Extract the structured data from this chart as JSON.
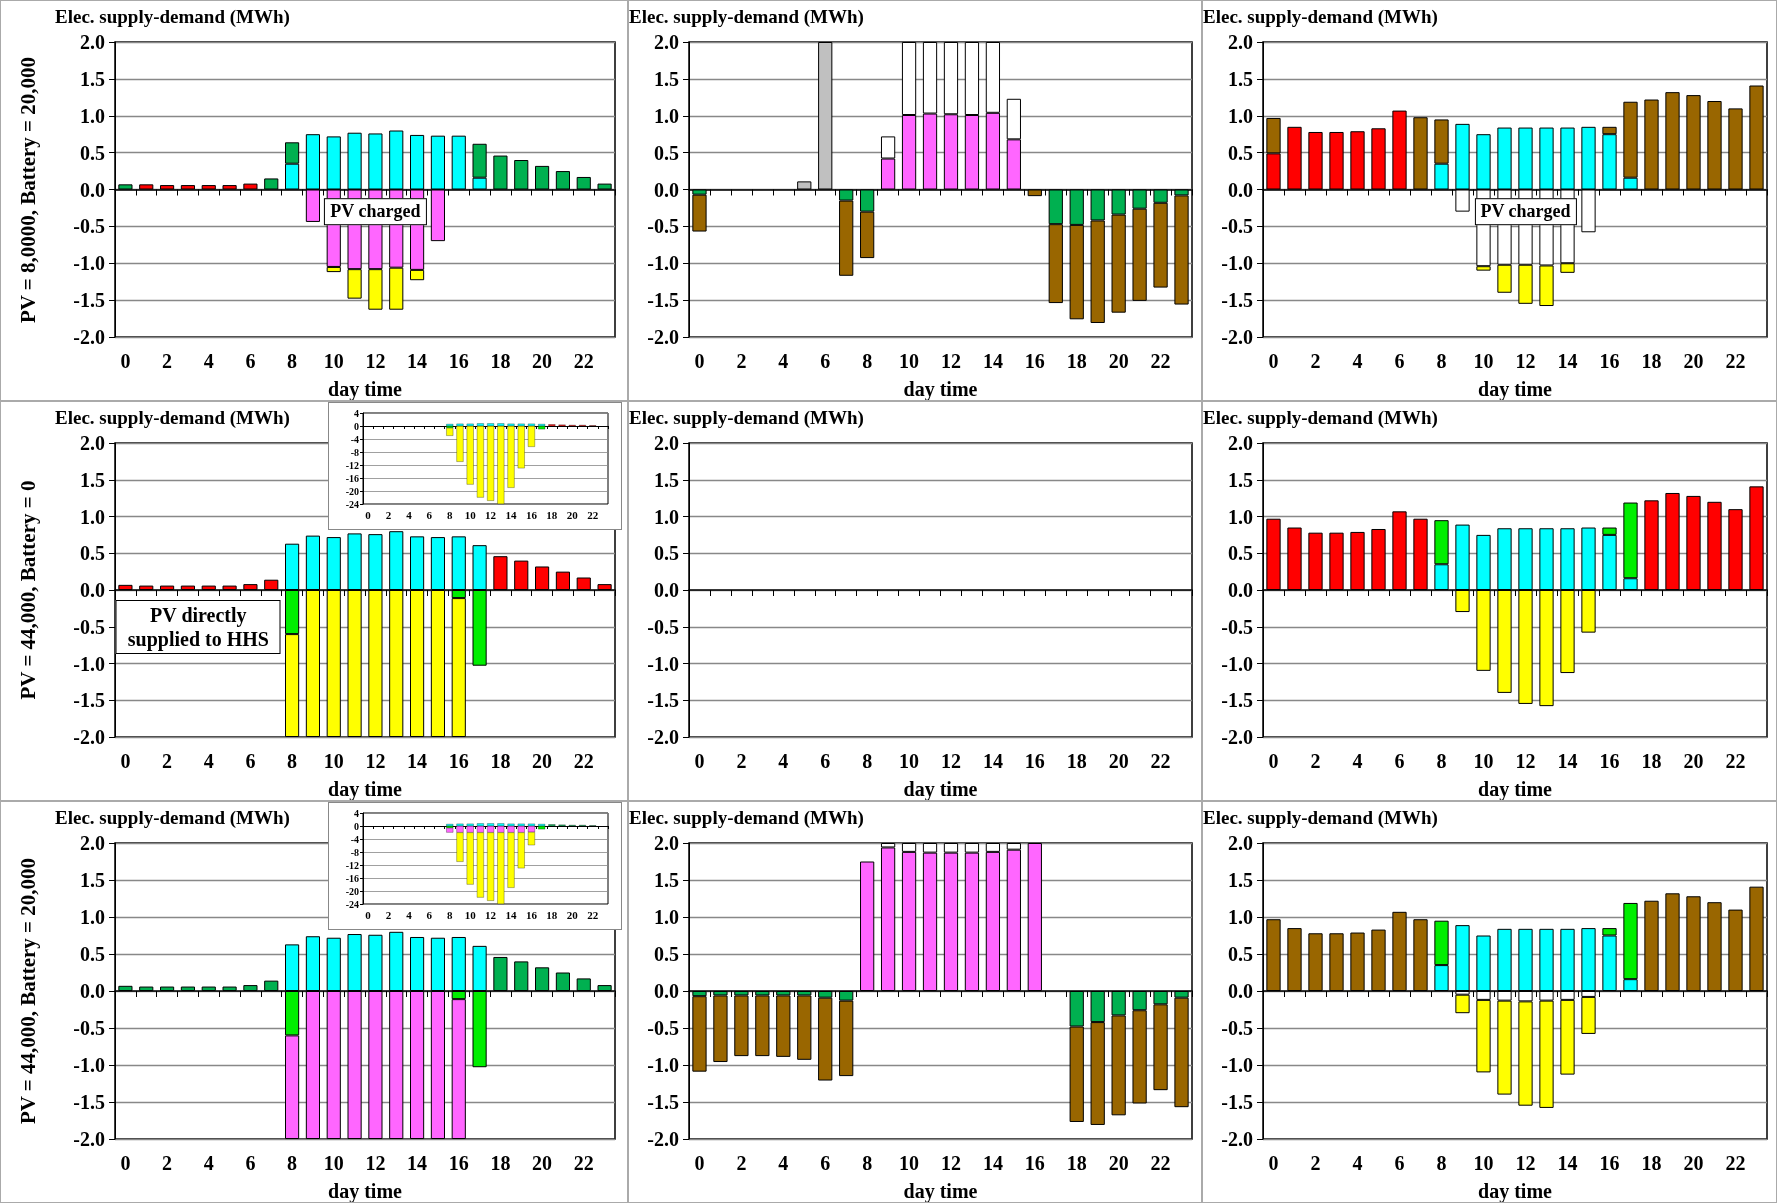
{
  "chart_data": [
    {
      "type": "bar",
      "stacked": true,
      "grid": "y",
      "xlabel": "day time",
      "ylabel": "Elec. supply-demand (MWh)",
      "annotations": [
        "PV = 8,0000, Battery = 20,000",
        "PV charged"
      ],
      "categories": [
        "0",
        null,
        "2",
        null,
        "4",
        null,
        "6",
        null,
        "8",
        null,
        "10",
        null,
        "12",
        null,
        "14",
        null,
        "16",
        null,
        "18",
        null,
        "20",
        null,
        "22",
        null
      ],
      "ylim": [
        -2,
        2
      ],
      "yticks": [
        {
          "value": 2,
          "label": "2.0"
        },
        {
          "value": 1.5,
          "label": "1.5"
        },
        {
          "value": 1,
          "label": "1.0"
        },
        {
          "value": 0.5,
          "label": "0.5"
        },
        {
          "value": 0,
          "label": "0.0"
        },
        {
          "value": -0.5,
          "label": "-0.5"
        },
        {
          "value": -1,
          "label": "-1.0"
        },
        {
          "value": -1.5,
          "label": "-1.5"
        },
        {
          "value": -2,
          "label": "-2.0"
        }
      ],
      "series": [
        {
          "color": "#ff0000",
          "values": [
            null,
            0.07,
            0.06,
            0.06,
            0.06,
            0.06,
            0.08,
            null,
            null,
            null,
            null,
            null,
            null,
            null,
            null,
            null,
            null,
            null,
            null,
            null,
            null,
            null,
            null,
            null
          ]
        },
        {
          "color": "#00ffff",
          "values": [
            null,
            null,
            null,
            null,
            null,
            null,
            null,
            null,
            0.35,
            0.75,
            0.72,
            0.77,
            0.76,
            0.8,
            0.74,
            0.73,
            0.73,
            0.16,
            null,
            null,
            null,
            null,
            null,
            null
          ]
        },
        {
          "color": "#00b050",
          "values": [
            0.07,
            null,
            null,
            null,
            null,
            null,
            null,
            0.15,
            0.29,
            null,
            null,
            null,
            null,
            null,
            null,
            null,
            null,
            0.46,
            0.46,
            0.4,
            0.32,
            0.25,
            0.17,
            0.08
          ]
        },
        {
          "color": "#ff66ff",
          "values": [
            null,
            null,
            null,
            null,
            null,
            null,
            null,
            null,
            null,
            -0.44,
            -1.05,
            -1.08,
            -1.08,
            -1.06,
            -1.09,
            -0.7,
            null,
            null,
            null,
            null,
            null,
            null,
            null,
            null
          ]
        },
        {
          "color": "#ffff00",
          "values": [
            null,
            null,
            null,
            null,
            null,
            null,
            null,
            null,
            null,
            null,
            -0.07,
            -0.4,
            -0.55,
            -0.57,
            -0.14,
            null,
            null,
            null,
            null,
            null,
            null,
            null,
            null,
            null
          ]
        }
      ]
    },
    {
      "type": "bar",
      "stacked": true,
      "grid": "y",
      "xlabel": "day time",
      "ylabel": "Elec. supply-demand (MWh)",
      "categories": [
        "0",
        null,
        "2",
        null,
        "4",
        null,
        "6",
        null,
        "8",
        null,
        "10",
        null,
        "12",
        null,
        "14",
        null,
        "16",
        null,
        "18",
        null,
        "20",
        null,
        "22",
        null
      ],
      "ylim": [
        -2,
        2
      ],
      "yticks": [
        {
          "value": 2,
          "label": "2.0"
        },
        {
          "value": 1.5,
          "label": "1.5"
        },
        {
          "value": 1,
          "label": "1.0"
        },
        {
          "value": 0.5,
          "label": "0.5"
        },
        {
          "value": 0,
          "label": "0.0"
        },
        {
          "value": -0.5,
          "label": "-0.5"
        },
        {
          "value": -1,
          "label": "-1.0"
        },
        {
          "value": -1.5,
          "label": "-1.5"
        },
        {
          "value": -2,
          "label": "-2.0"
        }
      ],
      "series": [
        {
          "color": "#c0c0c0",
          "values": [
            null,
            null,
            null,
            null,
            null,
            0.11,
            2,
            null,
            null,
            null,
            null,
            null,
            null,
            null,
            null,
            null,
            null,
            null,
            null,
            null,
            null,
            null,
            null,
            null
          ]
        },
        {
          "color": "#ff66ff",
          "values": [
            null,
            null,
            null,
            null,
            null,
            null,
            null,
            null,
            null,
            0.42,
            1.01,
            1.03,
            1.02,
            1.01,
            1.04,
            0.68,
            null,
            null,
            null,
            null,
            null,
            null,
            null,
            null
          ]
        },
        {
          "color": "#ffffff",
          "values": [
            null,
            null,
            null,
            null,
            null,
            null,
            null,
            null,
            null,
            0.3,
            0.99,
            0.97,
            0.98,
            0.99,
            0.96,
            0.55,
            null,
            null,
            null,
            null,
            null,
            null,
            null,
            null
          ]
        },
        {
          "color": "#00b050",
          "values": [
            -0.07,
            null,
            null,
            null,
            null,
            null,
            null,
            -0.15,
            -0.3,
            null,
            null,
            null,
            null,
            null,
            null,
            null,
            null,
            -0.47,
            -0.48,
            -0.42,
            -0.34,
            -0.26,
            -0.18,
            -0.08
          ]
        },
        {
          "color": "#996600",
          "values": [
            -0.5,
            null,
            null,
            null,
            null,
            null,
            null,
            -1.02,
            -0.63,
            null,
            null,
            null,
            null,
            null,
            null,
            null,
            -0.09,
            -1.07,
            -1.28,
            -1.39,
            -1.33,
            -1.25,
            -1.15,
            -1.48
          ]
        }
      ]
    },
    {
      "type": "bar",
      "stacked": true,
      "grid": "y",
      "xlabel": "day time",
      "ylabel": "Elec. supply-demand (MWh)",
      "annotations": [
        "PV charged"
      ],
      "categories": [
        "0",
        null,
        "2",
        null,
        "4",
        null,
        "6",
        null,
        "8",
        null,
        "10",
        null,
        "12",
        null,
        "14",
        null,
        "16",
        null,
        "18",
        null,
        "20",
        null,
        "22",
        null
      ],
      "ylim": [
        -2,
        2
      ],
      "yticks": [
        {
          "value": 2,
          "label": "2.0"
        },
        {
          "value": 1.5,
          "label": "1.5"
        },
        {
          "value": 1,
          "label": "1.0"
        },
        {
          "value": 0.5,
          "label": "0.5"
        },
        {
          "value": 0,
          "label": "0.0"
        },
        {
          "value": -0.5,
          "label": "-0.5"
        },
        {
          "value": -1,
          "label": "-1.0"
        },
        {
          "value": -1.5,
          "label": "-1.5"
        },
        {
          "value": -2,
          "label": "-2.0"
        }
      ],
      "series": [
        {
          "color": "#ff0000",
          "values": [
            0.49,
            0.85,
            0.78,
            0.78,
            0.79,
            0.83,
            1.07,
            null,
            null,
            null,
            null,
            null,
            null,
            null,
            null,
            null,
            null,
            null,
            null,
            null,
            null,
            null,
            null,
            null
          ]
        },
        {
          "color": "#00ffff",
          "values": [
            null,
            null,
            null,
            null,
            null,
            null,
            null,
            null,
            0.35,
            0.89,
            0.75,
            0.84,
            0.84,
            0.84,
            0.84,
            0.85,
            0.75,
            0.16,
            null,
            null,
            null,
            null,
            null,
            null
          ]
        },
        {
          "color": "#996600",
          "values": [
            0.48,
            null,
            null,
            null,
            null,
            null,
            null,
            0.98,
            0.6,
            null,
            null,
            null,
            null,
            null,
            null,
            null,
            0.1,
            1.03,
            1.22,
            1.32,
            1.28,
            1.2,
            1.1,
            1.41
          ]
        },
        {
          "color": "#ffffff",
          "values": [
            null,
            null,
            null,
            null,
            null,
            null,
            null,
            null,
            null,
            -0.3,
            -1.04,
            -1.02,
            -1.02,
            -1.03,
            -1,
            -0.58,
            null,
            null,
            null,
            null,
            null,
            null,
            null,
            null
          ]
        },
        {
          "color": "#ffff00",
          "values": [
            null,
            null,
            null,
            null,
            null,
            null,
            null,
            null,
            null,
            null,
            -0.06,
            -0.38,
            -0.53,
            -0.55,
            -0.13,
            null,
            null,
            null,
            null,
            null,
            null,
            null,
            null,
            null
          ]
        }
      ]
    },
    {
      "type": "bar",
      "stacked": true,
      "grid": "y",
      "xlabel": "day time",
      "ylabel": "Elec. supply-demand (MWh)",
      "annotations": [
        "PV = 44,000, Battery = 0",
        "PV directly supplied to HHS"
      ],
      "categories": [
        "0",
        null,
        "2",
        null,
        "4",
        null,
        "6",
        null,
        "8",
        null,
        "10",
        null,
        "12",
        null,
        "14",
        null,
        "16",
        null,
        "18",
        null,
        "20",
        null,
        "22",
        null
      ],
      "ylim": [
        -2,
        2
      ],
      "yticks": [
        {
          "value": 2,
          "label": "2.0"
        },
        {
          "value": 1.5,
          "label": "1.5"
        },
        {
          "value": 1,
          "label": "1.0"
        },
        {
          "value": 0.5,
          "label": "0.5"
        },
        {
          "value": 0,
          "label": "0.0"
        },
        {
          "value": -0.5,
          "label": "-0.5"
        },
        {
          "value": -1,
          "label": "-1.0"
        },
        {
          "value": -1.5,
          "label": "-1.5"
        },
        {
          "value": -2,
          "label": "-2.0"
        }
      ],
      "series": [
        {
          "color": "#ff0000",
          "values": [
            0.07,
            0.06,
            0.06,
            0.06,
            0.06,
            0.06,
            0.08,
            0.14,
            null,
            null,
            null,
            null,
            null,
            null,
            null,
            null,
            null,
            null,
            0.46,
            0.4,
            0.32,
            0.25,
            0.17,
            0.08
          ]
        },
        {
          "color": "#00ffff",
          "values": [
            null,
            null,
            null,
            null,
            null,
            null,
            null,
            null,
            0.63,
            0.74,
            0.72,
            0.77,
            0.76,
            0.8,
            0.73,
            0.72,
            0.73,
            0.61,
            null,
            null,
            null,
            null,
            null,
            null
          ]
        },
        {
          "color": "#00ee00",
          "values": [
            null,
            null,
            null,
            null,
            null,
            null,
            null,
            null,
            -0.6,
            null,
            null,
            null,
            null,
            null,
            null,
            null,
            -0.11,
            -1.03,
            null,
            null,
            null,
            null,
            null,
            null
          ]
        },
        {
          "color": "#ffff00",
          "values": [
            null,
            null,
            null,
            null,
            null,
            null,
            null,
            null,
            -1.4,
            -2,
            -2,
            -2,
            -2,
            -2,
            -2,
            -2,
            -1.89,
            null,
            null,
            null,
            null,
            null,
            null,
            null
          ]
        }
      ]
    },
    {
      "type": "bar",
      "stacked": true,
      "grid": "y",
      "categories": [
        "0",
        null,
        "2",
        null,
        "4",
        null,
        "6",
        null,
        "8",
        null,
        "10",
        null,
        "12",
        null,
        "14",
        null,
        "16",
        null,
        "18",
        null,
        "20",
        null,
        "22",
        null
      ],
      "ylim": [
        -24,
        4
      ],
      "yticks": [
        4,
        0,
        -4,
        -8,
        -12,
        -16,
        -20,
        -24
      ],
      "series": [
        {
          "color": "#ff0000",
          "values": [
            null,
            null,
            null,
            null,
            null,
            null,
            null,
            null,
            null,
            null,
            null,
            null,
            null,
            null,
            null,
            null,
            null,
            null,
            0.5,
            0.4,
            0.3,
            0.3,
            0.2,
            null
          ]
        },
        {
          "color": "#00ffff",
          "values": [
            null,
            null,
            null,
            null,
            null,
            null,
            null,
            null,
            0.6,
            0.7,
            0.7,
            0.8,
            0.8,
            0.8,
            0.7,
            0.7,
            0.7,
            0.6,
            null,
            null,
            null,
            null,
            null,
            null
          ]
        },
        {
          "color": "#00ee00",
          "values": [
            null,
            null,
            null,
            null,
            null,
            null,
            null,
            null,
            -0.6,
            null,
            null,
            null,
            null,
            null,
            null,
            null,
            null,
            -1,
            null,
            null,
            null,
            null,
            null,
            null
          ]
        },
        {
          "color": "#ffff00",
          "values": [
            null,
            null,
            null,
            null,
            null,
            null,
            null,
            null,
            -2.4,
            -11,
            -18,
            -22,
            -23,
            -24,
            -19,
            -13,
            -6.4,
            null,
            null,
            null,
            null,
            null,
            null,
            null
          ]
        }
      ]
    },
    {
      "type": "bar",
      "stacked": true,
      "grid": "y",
      "xlabel": "day time",
      "ylabel": "Elec. supply-demand (MWh)",
      "categories": [
        "0",
        null,
        "2",
        null,
        "4",
        null,
        "6",
        null,
        "8",
        null,
        "10",
        null,
        "12",
        null,
        "14",
        null,
        "16",
        null,
        "18",
        null,
        "20",
        null,
        "22",
        null
      ],
      "ylim": [
        -2,
        2
      ],
      "yticks": [
        {
          "value": 2,
          "label": "2.0"
        },
        {
          "value": 1.5,
          "label": "1.5"
        },
        {
          "value": 1,
          "label": "1.0"
        },
        {
          "value": 0.5,
          "label": "0.5"
        },
        {
          "value": 0,
          "label": "0.0"
        },
        {
          "value": -0.5,
          "label": "-0.5"
        },
        {
          "value": -1,
          "label": "-1.0"
        },
        {
          "value": -1.5,
          "label": "-1.5"
        },
        {
          "value": -2,
          "label": "-2.0"
        }
      ],
      "values": [
        null,
        null,
        null,
        null,
        null,
        null,
        null,
        null,
        null,
        null,
        null,
        null,
        null,
        null,
        null,
        null,
        null,
        null,
        null,
        null,
        null,
        null,
        null,
        null
      ]
    },
    {
      "type": "bar",
      "stacked": true,
      "grid": "y",
      "xlabel": "day time",
      "ylabel": "Elec. supply-demand (MWh)",
      "categories": [
        "0",
        null,
        "2",
        null,
        "4",
        null,
        "6",
        null,
        "8",
        null,
        "10",
        null,
        "12",
        null,
        "14",
        null,
        "16",
        null,
        "18",
        null,
        "20",
        null,
        "22",
        null
      ],
      "ylim": [
        -2,
        2
      ],
      "yticks": [
        {
          "value": 2,
          "label": "2.0"
        },
        {
          "value": 1.5,
          "label": "1.5"
        },
        {
          "value": 1,
          "label": "1.0"
        },
        {
          "value": 0.5,
          "label": "0.5"
        },
        {
          "value": 0,
          "label": "0.0"
        },
        {
          "value": -0.5,
          "label": "-0.5"
        },
        {
          "value": -1,
          "label": "-1.0"
        },
        {
          "value": -1.5,
          "label": "-1.5"
        },
        {
          "value": -2,
          "label": "-2.0"
        }
      ],
      "series": [
        {
          "color": "#ff0000",
          "values": [
            0.97,
            0.85,
            0.78,
            0.78,
            0.79,
            0.83,
            1.07,
            0.97,
            null,
            null,
            null,
            null,
            null,
            null,
            null,
            null,
            null,
            null,
            1.22,
            1.32,
            1.28,
            1.2,
            1.1,
            1.41
          ]
        },
        {
          "color": "#00ffff",
          "values": [
            null,
            null,
            null,
            null,
            null,
            null,
            null,
            null,
            0.35,
            0.89,
            0.75,
            0.84,
            0.84,
            0.84,
            0.84,
            0.85,
            0.75,
            0.16,
            null,
            null,
            null,
            null,
            null,
            null
          ]
        },
        {
          "color": "#00ee00",
          "values": [
            null,
            null,
            null,
            null,
            null,
            null,
            null,
            null,
            0.6,
            null,
            null,
            null,
            null,
            null,
            null,
            null,
            0.1,
            1.03,
            null,
            null,
            null,
            null,
            null,
            null
          ]
        },
        {
          "color": "#ffff00",
          "values": [
            null,
            null,
            null,
            null,
            null,
            null,
            null,
            null,
            null,
            -0.3,
            -1.1,
            -1.4,
            -1.55,
            -1.58,
            -1.13,
            -0.58,
            null,
            null,
            null,
            null,
            null,
            null,
            null,
            null
          ]
        }
      ]
    },
    {
      "type": "bar",
      "stacked": true,
      "grid": "y",
      "xlabel": "day time",
      "ylabel": "Elec. supply-demand (MWh)",
      "annotations": [
        "PV = 44,000, Battery = 20,000"
      ],
      "categories": [
        "0",
        null,
        "2",
        null,
        "4",
        null,
        "6",
        null,
        "8",
        null,
        "10",
        null,
        "12",
        null,
        "14",
        null,
        "16",
        null,
        "18",
        null,
        "20",
        null,
        "22",
        null
      ],
      "ylim": [
        -2,
        2
      ],
      "yticks": [
        {
          "value": 2,
          "label": "2.0"
        },
        {
          "value": 1.5,
          "label": "1.5"
        },
        {
          "value": 1,
          "label": "1.0"
        },
        {
          "value": 0.5,
          "label": "0.5"
        },
        {
          "value": 0,
          "label": "0.0"
        },
        {
          "value": -0.5,
          "label": "-0.5"
        },
        {
          "value": -1,
          "label": "-1.0"
        },
        {
          "value": -1.5,
          "label": "-1.5"
        },
        {
          "value": -2,
          "label": "-2.0"
        }
      ],
      "series": [
        {
          "color": "#00b050",
          "values": [
            0.07,
            0.06,
            0.06,
            0.06,
            0.06,
            0.06,
            0.08,
            0.14,
            null,
            null,
            null,
            null,
            null,
            null,
            null,
            null,
            null,
            null,
            0.46,
            0.4,
            0.32,
            0.25,
            0.17,
            0.08
          ]
        },
        {
          "color": "#00ffff",
          "values": [
            null,
            null,
            null,
            null,
            null,
            null,
            null,
            null,
            0.63,
            0.74,
            0.72,
            0.77,
            0.76,
            0.8,
            0.73,
            0.72,
            0.73,
            0.61,
            null,
            null,
            null,
            null,
            null,
            null
          ]
        },
        {
          "color": "#00ee00",
          "values": [
            null,
            null,
            null,
            null,
            null,
            null,
            null,
            null,
            -0.6,
            null,
            null,
            null,
            null,
            null,
            null,
            null,
            -0.11,
            -1.03,
            null,
            null,
            null,
            null,
            null,
            null
          ]
        },
        {
          "color": "#ff66ff",
          "values": [
            null,
            null,
            null,
            null,
            null,
            null,
            null,
            null,
            -1.4,
            -2,
            -2,
            -2,
            -2,
            -2,
            -2,
            -2,
            -1.89,
            null,
            null,
            null,
            null,
            null,
            null,
            null
          ]
        }
      ]
    },
    {
      "type": "bar",
      "stacked": true,
      "grid": "y",
      "categories": [
        "0",
        null,
        "2",
        null,
        "4",
        null,
        "6",
        null,
        "8",
        null,
        "10",
        null,
        "12",
        null,
        "14",
        null,
        "16",
        null,
        "18",
        null,
        "20",
        null,
        "22",
        null
      ],
      "ylim": [
        -24,
        4
      ],
      "yticks": [
        4,
        0,
        -4,
        -8,
        -12,
        -16,
        -20,
        -24
      ],
      "series": [
        {
          "color": "#00b050",
          "values": [
            null,
            null,
            null,
            null,
            null,
            null,
            null,
            null,
            null,
            null,
            null,
            null,
            null,
            null,
            null,
            null,
            null,
            null,
            0.5,
            0.4,
            0.3,
            0.3,
            0.2,
            null
          ]
        },
        {
          "color": "#00ffff",
          "values": [
            null,
            null,
            null,
            null,
            null,
            null,
            null,
            null,
            0.6,
            0.7,
            0.7,
            0.8,
            0.8,
            0.8,
            0.7,
            0.7,
            0.7,
            0.6,
            null,
            null,
            null,
            null,
            null,
            null
          ]
        },
        {
          "color": "#00ee00",
          "values": [
            null,
            null,
            null,
            null,
            null,
            null,
            null,
            null,
            -0.6,
            null,
            null,
            null,
            null,
            null,
            null,
            null,
            null,
            -1,
            null,
            null,
            null,
            null,
            null,
            null
          ]
        },
        {
          "color": "#ff66ff",
          "values": [
            null,
            null,
            null,
            null,
            null,
            null,
            null,
            null,
            -1.4,
            -2,
            -2,
            -2,
            -2,
            -2,
            -2,
            -2,
            -1.9,
            null,
            null,
            null,
            null,
            null,
            null,
            null
          ]
        },
        {
          "color": "#ffff00",
          "values": [
            null,
            null,
            null,
            null,
            null,
            null,
            null,
            null,
            null,
            -9,
            -16,
            -20,
            -21,
            -22,
            -17,
            -11,
            -4,
            null,
            null,
            null,
            null,
            null,
            null,
            null
          ]
        }
      ]
    },
    {
      "type": "bar",
      "stacked": true,
      "grid": "y",
      "xlabel": "day time",
      "ylabel": "Elec. supply-demand (MWh)",
      "categories": [
        "0",
        null,
        "2",
        null,
        "4",
        null,
        "6",
        null,
        "8",
        null,
        "10",
        null,
        "12",
        null,
        "14",
        null,
        "16",
        null,
        "18",
        null,
        "20",
        null,
        "22",
        null
      ],
      "ylim": [
        -2,
        2
      ],
      "yticks": [
        {
          "value": 2,
          "label": "2.0"
        },
        {
          "value": 1.5,
          "label": "1.5"
        },
        {
          "value": 1,
          "label": "1.0"
        },
        {
          "value": 0.5,
          "label": "0.5"
        },
        {
          "value": 0,
          "label": "0.0"
        },
        {
          "value": -0.5,
          "label": "-0.5"
        },
        {
          "value": -1,
          "label": "-1.0"
        },
        {
          "value": -1.5,
          "label": "-1.5"
        },
        {
          "value": -2,
          "label": "-2.0"
        }
      ],
      "series": [
        {
          "color": "#ff66ff",
          "values": [
            null,
            null,
            null,
            null,
            null,
            null,
            null,
            null,
            1.75,
            1.94,
            1.88,
            1.87,
            1.87,
            1.87,
            1.88,
            1.91,
            2,
            null,
            null,
            null,
            null,
            null,
            null,
            null
          ]
        },
        {
          "color": "#ffffff",
          "values": [
            null,
            null,
            null,
            null,
            null,
            null,
            null,
            null,
            null,
            0.06,
            0.12,
            0.13,
            0.13,
            0.13,
            0.12,
            0.09,
            null,
            null,
            null,
            null,
            null,
            null,
            null,
            null
          ]
        },
        {
          "color": "#00b050",
          "values": [
            -0.07,
            -0.06,
            -0.06,
            -0.06,
            -0.06,
            -0.06,
            -0.09,
            -0.13,
            null,
            null,
            null,
            null,
            null,
            null,
            null,
            null,
            null,
            null,
            -0.48,
            -0.42,
            -0.33,
            -0.26,
            -0.18,
            -0.09
          ]
        },
        {
          "color": "#996600",
          "values": [
            -1.02,
            -0.9,
            -0.82,
            -0.82,
            -0.83,
            -0.87,
            -1.12,
            -1.02,
            null,
            null,
            null,
            null,
            null,
            null,
            null,
            null,
            null,
            null,
            -1.29,
            -1.39,
            -1.35,
            -1.26,
            -1.16,
            -1.48
          ]
        }
      ]
    },
    {
      "type": "bar",
      "stacked": true,
      "grid": "y",
      "xlabel": "day time",
      "ylabel": "Elec. supply-demand (MWh)",
      "categories": [
        "0",
        null,
        "2",
        null,
        "4",
        null,
        "6",
        null,
        "8",
        null,
        "10",
        null,
        "12",
        null,
        "14",
        null,
        "16",
        null,
        "18",
        null,
        "20",
        null,
        "22",
        null
      ],
      "ylim": [
        -2,
        2
      ],
      "yticks": [
        {
          "value": 2,
          "label": "2.0"
        },
        {
          "value": 1.5,
          "label": "1.5"
        },
        {
          "value": 1,
          "label": "1.0"
        },
        {
          "value": 0.5,
          "label": "0.5"
        },
        {
          "value": 0,
          "label": "0.0"
        },
        {
          "value": -0.5,
          "label": "-0.5"
        },
        {
          "value": -1,
          "label": "-1.0"
        },
        {
          "value": -1.5,
          "label": "-1.5"
        },
        {
          "value": -2,
          "label": "-2.0"
        }
      ],
      "series": [
        {
          "color": "#996600",
          "values": [
            0.97,
            0.85,
            0.78,
            0.78,
            0.79,
            0.83,
            1.07,
            0.97,
            null,
            null,
            null,
            null,
            null,
            null,
            null,
            null,
            null,
            null,
            1.22,
            1.32,
            1.28,
            1.2,
            1.1,
            1.41
          ]
        },
        {
          "color": "#00ffff",
          "values": [
            null,
            null,
            null,
            null,
            null,
            null,
            null,
            null,
            0.35,
            0.89,
            0.75,
            0.84,
            0.84,
            0.84,
            0.84,
            0.85,
            0.75,
            0.16,
            null,
            null,
            null,
            null,
            null,
            null
          ]
        },
        {
          "color": "#00ee00",
          "values": [
            null,
            null,
            null,
            null,
            null,
            null,
            null,
            null,
            0.6,
            null,
            null,
            null,
            null,
            null,
            null,
            null,
            0.1,
            1.03,
            null,
            null,
            null,
            null,
            null,
            null
          ]
        },
        {
          "color": "#ffffff",
          "values": [
            null,
            null,
            null,
            null,
            null,
            null,
            null,
            null,
            null,
            -0.05,
            -0.12,
            -0.13,
            -0.14,
            -0.13,
            -0.12,
            -0.08,
            null,
            null,
            null,
            null,
            null,
            null,
            null,
            null
          ]
        },
        {
          "color": "#ffff00",
          "values": [
            null,
            null,
            null,
            null,
            null,
            null,
            null,
            null,
            null,
            -0.25,
            -0.98,
            -1.27,
            -1.41,
            -1.45,
            -1.01,
            -0.5,
            null,
            null,
            null,
            null,
            null,
            null,
            null,
            null
          ]
        }
      ]
    }
  ]
}
